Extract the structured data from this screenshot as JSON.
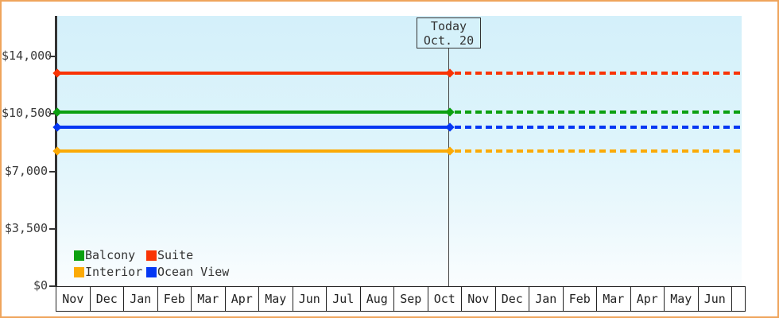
{
  "frame": {
    "border_color": "#efa55c",
    "background": "#ffffff"
  },
  "colors": {
    "plot_bg_top": "#d4f0fa",
    "plot_bg_bottom": "#fafdfe",
    "axis": "#333333",
    "text": "#333333",
    "today_box_bg": "#d5f1fa",
    "today_box_border": "#333333"
  },
  "chart_data": {
    "type": "line",
    "title": "",
    "xlabel": "",
    "ylabel": "",
    "x_categories": [
      "Nov",
      "Dec",
      "Jan",
      "Feb",
      "Mar",
      "Apr",
      "May",
      "Jun",
      "Jul",
      "Aug",
      "Sep",
      "Oct",
      "Nov",
      "Dec",
      "Jan",
      "Feb",
      "Mar",
      "Apr",
      "May",
      "Jun"
    ],
    "y_ticks": [
      {
        "label": "$0",
        "value": 0
      },
      {
        "label": "$3,500",
        "value": 3500
      },
      {
        "label": "$7,000",
        "value": 7000
      },
      {
        "label": "$10,500",
        "value": 10500
      },
      {
        "label": "$14,000",
        "value": 14000
      }
    ],
    "ylim": [
      0,
      16350
    ],
    "grid": false,
    "legend_position": "bottom-left-inside",
    "series": [
      {
        "name": "Suite",
        "color": "#f93405",
        "value": 13000,
        "style": "flat, solid then dotted after today"
      },
      {
        "name": "Balcony",
        "color": "#0ba010",
        "value": 10600,
        "style": "flat, solid then dotted after today"
      },
      {
        "name": "Ocean View",
        "color": "#0437f3",
        "value": 9700,
        "style": "flat, solid then dotted after today"
      },
      {
        "name": "Interior",
        "color": "#fbaa06",
        "value": 8250,
        "style": "flat, solid then dotted after today"
      }
    ],
    "legend_rows": [
      [
        "Balcony",
        "Suite"
      ],
      [
        "Interior",
        "Ocean View"
      ]
    ],
    "today_marker": {
      "line1": "Today",
      "line2": "Oct. 20",
      "month_index": 11,
      "day": 20
    }
  }
}
